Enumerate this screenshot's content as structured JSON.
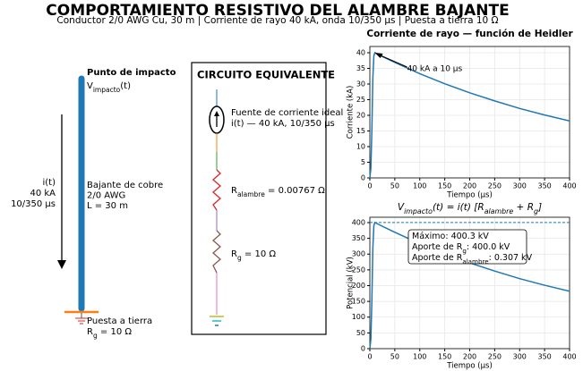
{
  "title": "COMPORTAMIENTO RESISTIVO DEL ALAMBRE BAJANTE",
  "subtitle": "Conductor 2/0 AWG Cu, 30 m  |  Corriente de rayo 40 kA, onda 10/350 µs  |  Puesta a tierra 10 Ω",
  "diagram": {
    "impact_title": "Punto de impacto",
    "impact_voltage": [
      "V",
      "impacto",
      "(t)"
    ],
    "current_lines": [
      "i(t)",
      "40 kA",
      "10/350 µs"
    ],
    "conductor_lines": [
      "Bajante de cobre",
      "2/0 AWG",
      "L = 30 m"
    ],
    "ground_label": "Puesta a tierra",
    "ground_resistance": [
      "R",
      "g",
      " = 10 Ω"
    ]
  },
  "circuit": {
    "title": "CIRCUITO EQUIVALENTE",
    "source_lines": [
      "Fuente de corriente ideal",
      "i(t) — 40 kA, 10/350 µs"
    ],
    "r_wire": [
      "R",
      "alambre",
      " = 0.00767 Ω"
    ],
    "r_ground": [
      "R",
      "g",
      " = 10 Ω"
    ]
  },
  "chart_data": [
    {
      "type": "line",
      "title": "Corriente de rayo — función de Heidler",
      "xlabel": "Tiempo (µs)",
      "ylabel": "Corriente (kA)",
      "x": [
        0,
        2,
        4,
        6,
        8,
        10,
        25,
        50,
        100,
        150,
        200,
        250,
        300,
        350,
        400
      ],
      "values": [
        0,
        3,
        15,
        32,
        39,
        40,
        38.8,
        36.9,
        33.3,
        30.1,
        27.2,
        24.6,
        22.2,
        20.1,
        18.2
      ],
      "color": "#1f77b4",
      "xlim": [
        0,
        400
      ],
      "ylim": [
        0,
        42
      ],
      "xticks": [
        0,
        50,
        100,
        150,
        200,
        250,
        300,
        350,
        400
      ],
      "yticks": [
        0,
        5,
        10,
        15,
        20,
        25,
        30,
        35,
        40
      ],
      "grid": true,
      "annotation": {
        "text": "40 kA a 10 µs",
        "x": 10,
        "y": 40
      }
    },
    {
      "type": "line",
      "title_parts": [
        "V",
        "impacto",
        "(t) = i(t) [R",
        "alambre",
        " + R",
        "g",
        "]"
      ],
      "xlabel": "Tiempo (µs)",
      "ylabel": "Potencial (kV)",
      "x": [
        0,
        2,
        4,
        6,
        8,
        10,
        25,
        50,
        100,
        150,
        200,
        250,
        300,
        350,
        400
      ],
      "values": [
        0,
        30,
        150,
        320,
        390.3,
        400.3,
        388.3,
        369.3,
        333.3,
        301.2,
        272.2,
        246.2,
        222.2,
        201.2,
        182.1
      ],
      "color": "#1f77b4",
      "xlim": [
        0,
        400
      ],
      "ylim": [
        0,
        417
      ],
      "xticks": [
        0,
        50,
        100,
        150,
        200,
        250,
        300,
        350,
        400
      ],
      "yticks": [
        0,
        50,
        100,
        150,
        200,
        250,
        300,
        350,
        400
      ],
      "grid": true,
      "hline": 400.3,
      "box": [
        [
          "Máximo: 400.3 kV"
        ],
        [
          "Aporte de R",
          "g",
          ": 400.0 kV"
        ],
        [
          "Aporte de R",
          "alambre",
          ": 0.307 kV"
        ]
      ]
    }
  ]
}
